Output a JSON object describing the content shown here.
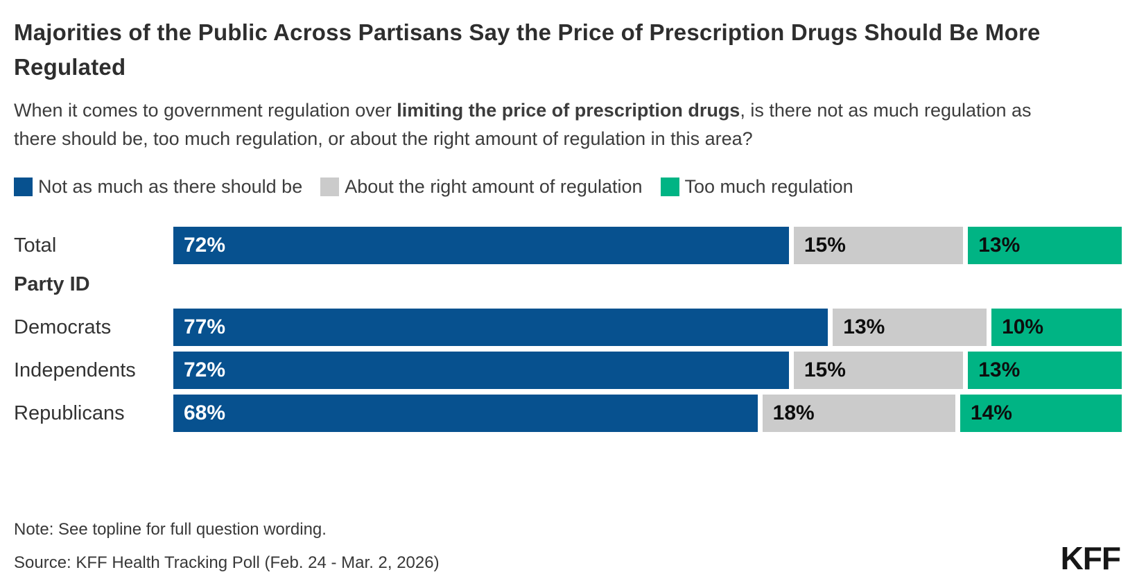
{
  "header": {
    "title": "Majorities of the Public Across Partisans Say the Price of Prescription Drugs Should Be More Regulated",
    "subtitle_prefix": "When it comes to government regulation over ",
    "subtitle_bold": "limiting the price of prescription drugs",
    "subtitle_suffix": ", is there not as much regulation as there should be, too much regulation, or about the right amount of regulation in this area?"
  },
  "colors": {
    "not_as_much": "#07518F",
    "about_right": "#CBCBCB",
    "too_much": "#00B484"
  },
  "legend": {
    "items": [
      {
        "label": "Not as much as there should be",
        "color": "#07518F"
      },
      {
        "label": "About the right amount of regulation",
        "color": "#CBCBCB"
      },
      {
        "label": "Too much regulation",
        "color": "#00B484"
      }
    ]
  },
  "section_header": "Party ID",
  "bars": {
    "rows": [
      {
        "label": "Total",
        "segments": [
          {
            "pct": 72,
            "text": "72%"
          },
          {
            "pct": 15,
            "text": "15%"
          },
          {
            "pct": 13,
            "text": "13%"
          }
        ]
      },
      {
        "label": "Democrats",
        "segments": [
          {
            "pct": 77,
            "text": "77%"
          },
          {
            "pct": 13,
            "text": "13%"
          },
          {
            "pct": 10,
            "text": "10%"
          }
        ]
      },
      {
        "label": "Independents",
        "segments": [
          {
            "pct": 72,
            "text": "72%"
          },
          {
            "pct": 15,
            "text": "15%"
          },
          {
            "pct": 13,
            "text": "13%"
          }
        ]
      },
      {
        "label": "Republicans",
        "segments": [
          {
            "pct": 68,
            "text": "68%"
          },
          {
            "pct": 18,
            "text": "18%"
          },
          {
            "pct": 14,
            "text": "14%"
          }
        ]
      }
    ]
  },
  "footer": {
    "note": "Note: See topline for full question wording.",
    "source": "Source: KFF Health Tracking Poll (Feb. 24 - Mar. 2, 2026)",
    "logo": "KFF"
  },
  "chart_data": {
    "type": "bar",
    "orientation": "horizontal",
    "stacked": true,
    "title": "Majorities of the Public Across Partisans Say the Price of Prescription Drugs Should Be More Regulated",
    "subtitle": "When it comes to government regulation over limiting the price of prescription drugs, is there not as much regulation as there should be, too much regulation, or about the right amount of regulation in this area?",
    "categories": [
      "Total",
      "Democrats",
      "Independents",
      "Republicans"
    ],
    "category_group_header": "Party ID",
    "series": [
      {
        "name": "Not as much as there should be",
        "color": "#07518F",
        "values": [
          72,
          77,
          72,
          68
        ]
      },
      {
        "name": "About the right amount of regulation",
        "color": "#CBCBCB",
        "values": [
          15,
          13,
          15,
          18
        ]
      },
      {
        "name": "Too much regulation",
        "color": "#00B484",
        "values": [
          13,
          10,
          13,
          14
        ]
      }
    ],
    "value_unit": "%",
    "xlim": [
      0,
      100
    ],
    "legend_position": "top",
    "grid": false,
    "note": "Note: See topline for full question wording.",
    "source": "Source: KFF Health Tracking Poll (Feb. 24 - Mar. 2, 2026)"
  }
}
